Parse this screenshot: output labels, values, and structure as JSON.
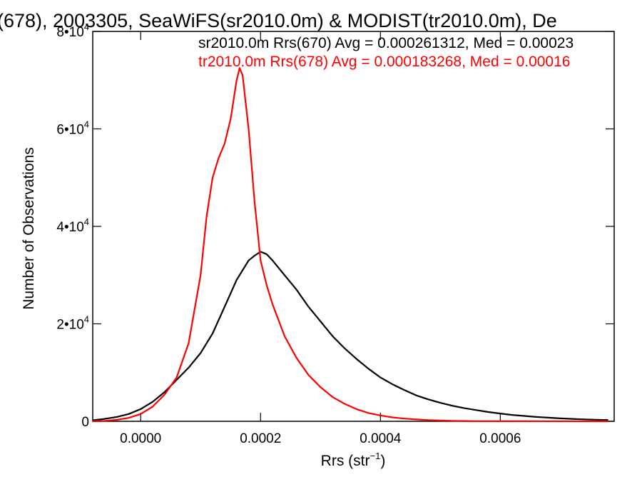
{
  "chart_data": {
    "type": "line",
    "title": "(678), 2003305, SeaWiFS(sr2010.0m) & MODIST(tr2010.0m), De",
    "xlabel": "Rrs (str",
    "xlabel_sup": "−1",
    "xlabel_end": ")",
    "ylabel": "Number of Observations",
    "xlim": [
      -8e-05,
      0.00079
    ],
    "ylim": [
      0,
      80000
    ],
    "x_ticks": [
      {
        "value": 0.0,
        "label": "0.0000"
      },
      {
        "value": 0.0002,
        "label": "0.0002"
      },
      {
        "value": 0.0004,
        "label": "0.0004"
      },
      {
        "value": 0.0006,
        "label": "0.0006"
      }
    ],
    "y_ticks": [
      {
        "value": 0,
        "mantissa": "0",
        "exponent": ""
      },
      {
        "value": 20000,
        "mantissa": "2•10",
        "exponent": "4"
      },
      {
        "value": 40000,
        "mantissa": "4•10",
        "exponent": "4"
      },
      {
        "value": 60000,
        "mantissa": "6•10",
        "exponent": "4"
      },
      {
        "value": 80000,
        "mantissa": "8•10",
        "exponent": "4"
      }
    ],
    "series": [
      {
        "legend": "sr2010.0m Rrs(670) Avg = 0.000261312, Med = 0.00023",
        "color": "#000000",
        "points": [
          [
            -8e-05,
            200
          ],
          [
            -6e-05,
            500
          ],
          [
            -4e-05,
            900
          ],
          [
            -2e-05,
            1500
          ],
          [
            0.0,
            2500
          ],
          [
            2e-05,
            4000
          ],
          [
            4e-05,
            6000
          ],
          [
            6e-05,
            8500
          ],
          [
            8e-05,
            11000
          ],
          [
            0.0001,
            14000
          ],
          [
            0.00012,
            18000
          ],
          [
            0.00014,
            23500
          ],
          [
            0.00016,
            29000
          ],
          [
            0.00017,
            31000
          ],
          [
            0.00018,
            33000
          ],
          [
            0.00019,
            34000
          ],
          [
            0.0002,
            34800
          ],
          [
            0.00021,
            34300
          ],
          [
            0.00022,
            33000
          ],
          [
            0.00024,
            30000
          ],
          [
            0.00026,
            27000
          ],
          [
            0.00028,
            23500
          ],
          [
            0.0003,
            20500
          ],
          [
            0.00032,
            17500
          ],
          [
            0.00034,
            15000
          ],
          [
            0.00036,
            12800
          ],
          [
            0.00038,
            10800
          ],
          [
            0.0004,
            9000
          ],
          [
            0.00042,
            7600
          ],
          [
            0.00044,
            6400
          ],
          [
            0.00046,
            5300
          ],
          [
            0.00048,
            4500
          ],
          [
            0.0005,
            3800
          ],
          [
            0.00052,
            3200
          ],
          [
            0.00054,
            2700
          ],
          [
            0.00056,
            2300
          ],
          [
            0.00058,
            1900
          ],
          [
            0.0006,
            1600
          ],
          [
            0.00062,
            1300
          ],
          [
            0.00064,
            1100
          ],
          [
            0.00066,
            900
          ],
          [
            0.00068,
            750
          ],
          [
            0.0007,
            600
          ],
          [
            0.00072,
            500
          ],
          [
            0.00074,
            400
          ],
          [
            0.00076,
            320
          ],
          [
            0.00078,
            260
          ]
        ]
      },
      {
        "legend": "tr2010.0m Rrs(678) Avg = 0.000183268, Med = 0.00016",
        "color": "#ff0000",
        "points": [
          [
            -8e-05,
            0
          ],
          [
            -6e-05,
            100
          ],
          [
            -4e-05,
            300
          ],
          [
            -2e-05,
            700
          ],
          [
            0.0,
            1500
          ],
          [
            2e-05,
            3000
          ],
          [
            4e-05,
            5500
          ],
          [
            6e-05,
            9000
          ],
          [
            8e-05,
            16000
          ],
          [
            0.0001,
            30000
          ],
          [
            0.00011,
            42000
          ],
          [
            0.00012,
            50000
          ],
          [
            0.00013,
            54000
          ],
          [
            0.00014,
            57000
          ],
          [
            0.00015,
            62000
          ],
          [
            0.00016,
            70000
          ],
          [
            0.000165,
            72500
          ],
          [
            0.00017,
            71000
          ],
          [
            0.00018,
            60000
          ],
          [
            0.00019,
            45000
          ],
          [
            0.0002,
            33000
          ],
          [
            0.00021,
            28000
          ],
          [
            0.00022,
            24000
          ],
          [
            0.00024,
            17500
          ],
          [
            0.00026,
            13000
          ],
          [
            0.00028,
            9500
          ],
          [
            0.0003,
            7000
          ],
          [
            0.00032,
            5000
          ],
          [
            0.00034,
            3600
          ],
          [
            0.00036,
            2500
          ],
          [
            0.00038,
            1700
          ],
          [
            0.0004,
            1200
          ],
          [
            0.00042,
            800
          ],
          [
            0.00044,
            550
          ],
          [
            0.00046,
            380
          ],
          [
            0.00048,
            250
          ],
          [
            0.0005,
            160
          ],
          [
            0.00052,
            100
          ],
          [
            0.00054,
            60
          ],
          [
            0.00056,
            30
          ],
          [
            0.0006,
            10
          ],
          [
            0.00078,
            0
          ]
        ]
      }
    ]
  }
}
